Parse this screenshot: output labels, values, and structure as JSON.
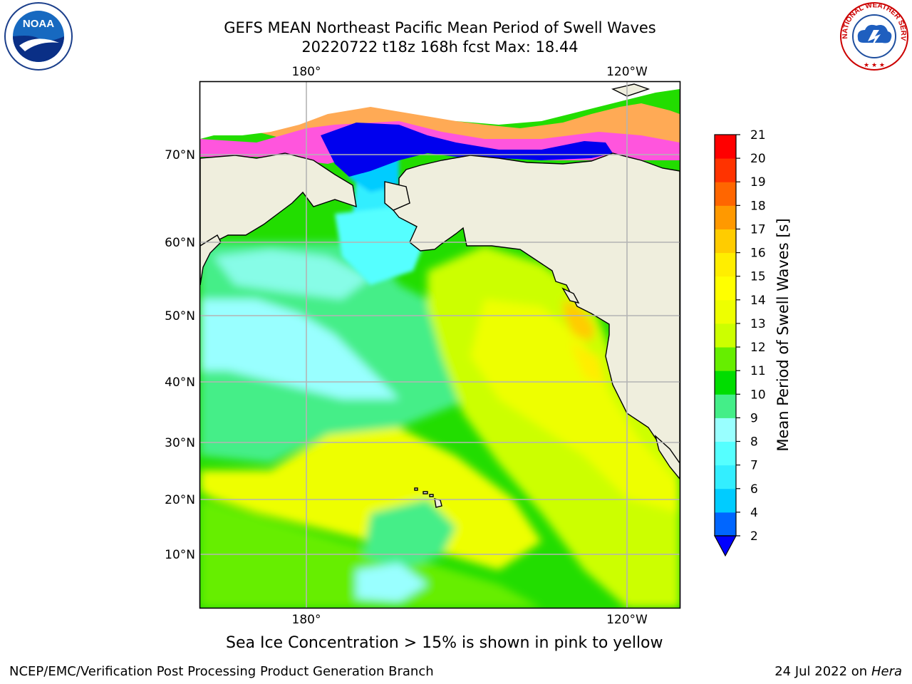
{
  "header": {
    "title_line1": "GEFS MEAN Northeast Pacific Mean Period of Swell Waves",
    "title_line2": "20220722 t18z 168h fcst   Max: 18.44"
  },
  "map": {
    "top_lon_labels": [
      "180°",
      "120°W"
    ],
    "bottom_lon_labels": [
      "180°",
      "120°W"
    ],
    "lat_labels": [
      "70°N",
      "60°N",
      "50°N",
      "40°N",
      "30°N",
      "20°N",
      "10°N"
    ],
    "colors": {
      "land": "#efeedd",
      "grid": "#b4b4b4",
      "coast": "#000000"
    }
  },
  "colorbar": {
    "label": "Mean Period of Swell Waves [s]",
    "ticks": [
      "2",
      "4",
      "6",
      "7",
      "8",
      "9",
      "10",
      "11",
      "12",
      "13",
      "14",
      "15",
      "16",
      "17",
      "18",
      "19",
      "20",
      "21"
    ],
    "colors": [
      "#0066ff",
      "#00ccff",
      "#33eeff",
      "#55ffff",
      "#99ffff",
      "#44ee88",
      "#00dd00",
      "#66ee00",
      "#ccff00",
      "#eeff00",
      "#ffff00",
      "#ffee00",
      "#ffcc00",
      "#ff9900",
      "#ff6600",
      "#ff3300",
      "#ff0000"
    ],
    "under_color": "#0000ff"
  },
  "notes": {
    "sea_ice": "Sea Ice Concentration > 15% is shown in pink to yellow"
  },
  "footer": {
    "left": "NCEP/EMC/Verification Post Processing Product Generation Branch",
    "right_date": "24 Jul 2022 on ",
    "right_host": "Hera"
  },
  "logos": {
    "noaa_text": "NOAA",
    "nws_text": "NATIONAL WEATHER SERVICE"
  }
}
